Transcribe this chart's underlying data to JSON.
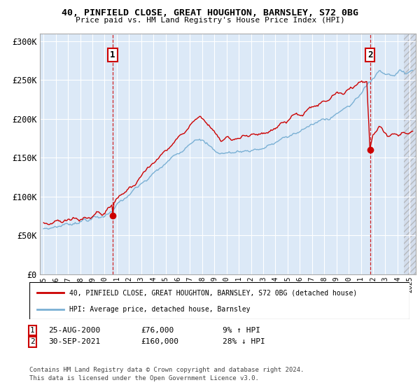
{
  "title1": "40, PINFIELD CLOSE, GREAT HOUGHTON, BARNSLEY, S72 0BG",
  "title2": "Price paid vs. HM Land Registry's House Price Index (HPI)",
  "background_color": "#ffffff",
  "plot_bg": "#dce9f7",
  "ylabel_ticks": [
    "£0",
    "£50K",
    "£100K",
    "£150K",
    "£200K",
    "£250K",
    "£300K"
  ],
  "ytick_values": [
    0,
    50000,
    100000,
    150000,
    200000,
    250000,
    300000
  ],
  "ylim": [
    0,
    310000
  ],
  "xlim_start": 1994.7,
  "xlim_end": 2025.5,
  "legend_line1": "40, PINFIELD CLOSE, GREAT HOUGHTON, BARNSLEY, S72 0BG (detached house)",
  "legend_line2": "HPI: Average price, detached house, Barnsley",
  "annotation1_text_date": "25-AUG-2000",
  "annotation1_text_price": "£76,000",
  "annotation1_text_hpi": "9% ↑ HPI",
  "annotation2_text_date": "30-SEP-2021",
  "annotation2_text_price": "£160,000",
  "annotation2_text_hpi": "28% ↓ HPI",
  "footer": "Contains HM Land Registry data © Crown copyright and database right 2024.\nThis data is licensed under the Open Government Licence v3.0.",
  "red_color": "#cc0000",
  "blue_color": "#7ab0d4",
  "hatch_start": 2024.5,
  "ann1_x": 2000.65,
  "ann1_y": 76000,
  "ann2_x": 2021.75,
  "ann2_y": 160000
}
